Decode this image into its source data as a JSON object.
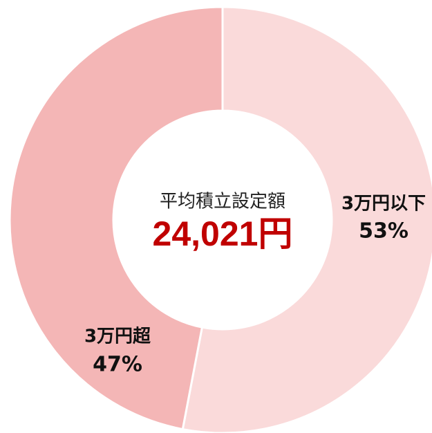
{
  "chart_data": {
    "type": "donut",
    "center_title": "平均積立設定額",
    "center_value": "24,021円",
    "categories": [
      "3万円以下",
      "3万円超"
    ],
    "values": [
      53,
      47
    ],
    "value_labels": [
      "53%",
      "47%"
    ],
    "colors": [
      "#fadada",
      "#f4b6b6"
    ],
    "start": "top",
    "direction": "clockwise"
  }
}
